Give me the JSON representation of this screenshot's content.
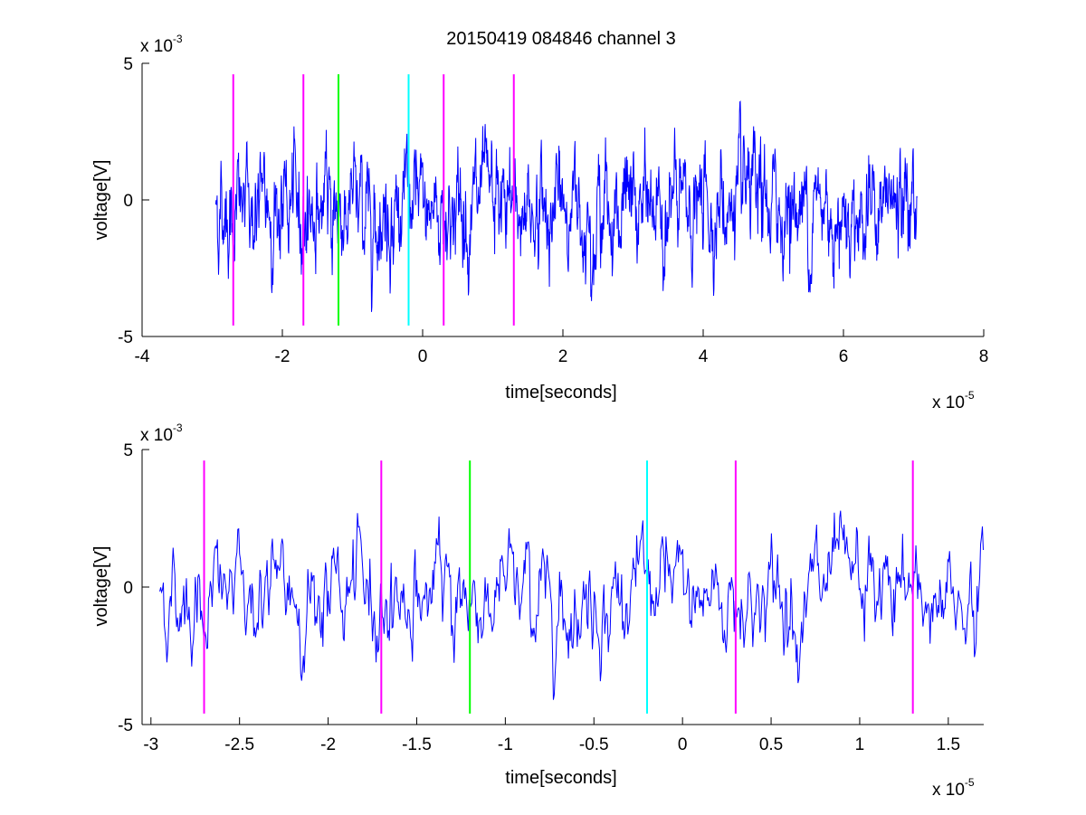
{
  "chart_data": [
    {
      "type": "line",
      "title": "20150419 084846 channel 3",
      "xlabel": "time[seconds]",
      "ylabel": "voltage[V]",
      "xlim": [
        -4,
        8
      ],
      "ylim": [
        -5,
        5
      ],
      "x_ticks": [
        -4,
        -2,
        0,
        2,
        4,
        6,
        8
      ],
      "x_tick_labels": [
        "-4",
        "-2",
        "0",
        "2",
        "4",
        "6",
        "8"
      ],
      "y_ticks": [
        -5,
        0,
        5
      ],
      "y_tick_labels": [
        "-5",
        "0",
        "5"
      ],
      "x_multiplier": {
        "base": "x 10",
        "exponent": "-5"
      },
      "y_multiplier": {
        "base": "x 10",
        "exponent": "-3"
      },
      "grid": false,
      "signal": {
        "color": "#0000ff",
        "x_start": -2.95,
        "x_end": 7.05,
        "amplitude_range": [
          -4.1,
          3.6
        ]
      },
      "markers": [
        {
          "x": -2.7,
          "color": "#ff00ff"
        },
        {
          "x": -1.7,
          "color": "#ff00ff"
        },
        {
          "x": -1.2,
          "color": "#00ff00"
        },
        {
          "x": -0.2,
          "color": "#00ffff"
        },
        {
          "x": 0.3,
          "color": "#ff00ff"
        },
        {
          "x": 1.3,
          "color": "#ff00ff"
        }
      ],
      "marker_range": [
        -4.6,
        4.6
      ]
    },
    {
      "type": "line",
      "title": "",
      "xlabel": "time[seconds]",
      "ylabel": "voltage[V]",
      "xlim": [
        -3.05,
        1.7
      ],
      "ylim": [
        -5,
        5
      ],
      "x_ticks": [
        -3,
        -2.5,
        -2,
        -1.5,
        -1,
        -0.5,
        0,
        0.5,
        1,
        1.5
      ],
      "x_tick_labels": [
        "-3",
        "-2.5",
        "-2",
        "-1.5",
        "-1",
        "-0.5",
        "0",
        "0.5",
        "1",
        "1.5"
      ],
      "y_ticks": [
        -5,
        0,
        5
      ],
      "y_tick_labels": [
        "-5",
        "0",
        "5"
      ],
      "x_multiplier": {
        "base": "x 10",
        "exponent": "-5"
      },
      "y_multiplier": {
        "base": "x 10",
        "exponent": "-3"
      },
      "grid": false,
      "signal": {
        "color": "#0000ff",
        "x_start": -2.95,
        "x_end": 1.7,
        "amplitude_range": [
          -4.0,
          3.6
        ]
      },
      "markers": [
        {
          "x": -2.7,
          "color": "#ff00ff"
        },
        {
          "x": -1.7,
          "color": "#ff00ff"
        },
        {
          "x": -1.2,
          "color": "#00ff00"
        },
        {
          "x": -0.2,
          "color": "#00ffff"
        },
        {
          "x": 0.3,
          "color": "#ff00ff"
        },
        {
          "x": 1.3,
          "color": "#ff00ff"
        }
      ],
      "marker_range": [
        -4.6,
        4.6
      ]
    }
  ]
}
